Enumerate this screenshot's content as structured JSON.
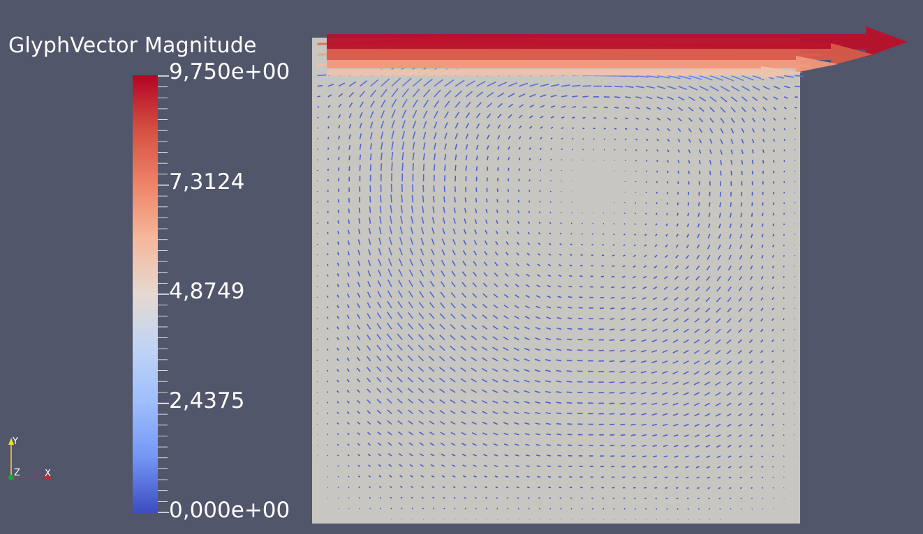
{
  "scalar_bar": {
    "title": "GlyphVector Magnitude",
    "labels": [
      "9,750e+00",
      "7,3124",
      "4,8749",
      "2,4375",
      "0,000e+00"
    ],
    "range": [
      0,
      9.75
    ],
    "colormap": [
      "#3b4cc0",
      "#7597f6",
      "#9dbdfc",
      "#c1d4f4",
      "#e6d9d0",
      "#f6b69a",
      "#ee8468",
      "#d44e41",
      "#b40426"
    ]
  },
  "orientation_axes": {
    "x_label": "X",
    "y_label": "Y",
    "z_label": "Z",
    "x_color": "#e02020",
    "y_color": "#f0e020",
    "z_color": "#20a040"
  },
  "render_view": {
    "background": "#51566a",
    "surface_color": "#c8c6c0"
  }
}
